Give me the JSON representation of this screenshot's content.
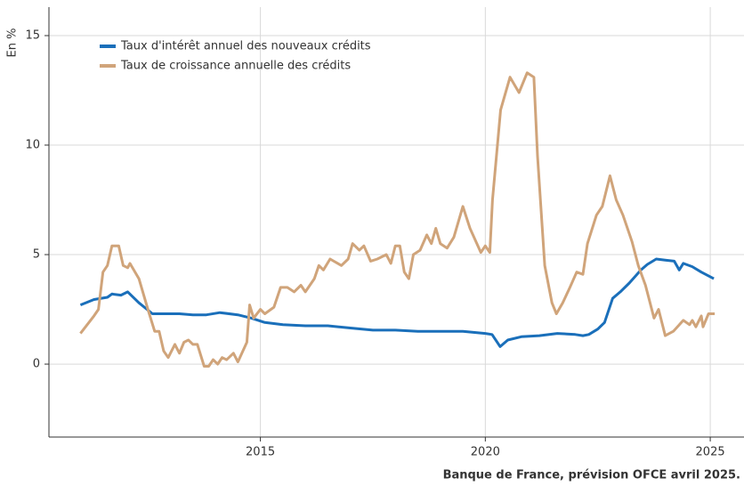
{
  "chart_data": {
    "type": "line",
    "y_label": "En %",
    "source": "Banque de France, prévision OFCE avril 2025.",
    "xlim": [
      2010.3,
      2025.75
    ],
    "ylim": [
      -3.33,
      16.3
    ],
    "xticks": [
      2015,
      2020,
      2025
    ],
    "yticks": [
      0,
      5,
      10,
      15
    ],
    "grid": true,
    "legend": "upper left",
    "series": [
      {
        "name": "Taux d'intérêt annuel des nouveaux crédits",
        "color": "#1a6fba",
        "x": [
          2011.0,
          2011.3,
          2011.6,
          2011.7,
          2011.9,
          2012.05,
          2012.3,
          2012.6,
          2012.9,
          2013.2,
          2013.5,
          2013.8,
          2014.1,
          2014.5,
          2014.8,
          2015.1,
          2015.5,
          2016.0,
          2016.5,
          2017.0,
          2017.5,
          2018.0,
          2018.5,
          2019.0,
          2019.5,
          2020.0,
          2020.15,
          2020.33,
          2020.5,
          2020.8,
          2021.2,
          2021.6,
          2022.0,
          2022.17,
          2022.3,
          2022.5,
          2022.65,
          2022.83,
          2023.0,
          2023.2,
          2023.46,
          2023.6,
          2023.8,
          2024.0,
          2024.2,
          2024.31,
          2024.4,
          2024.6,
          2024.8,
          2025.08
        ],
        "values": [
          2.7,
          2.95,
          3.05,
          3.2,
          3.15,
          3.3,
          2.8,
          2.3,
          2.3,
          2.3,
          2.25,
          2.25,
          2.35,
          2.25,
          2.1,
          1.9,
          1.8,
          1.75,
          1.75,
          1.65,
          1.55,
          1.55,
          1.5,
          1.5,
          1.5,
          1.4,
          1.35,
          0.8,
          1.1,
          1.25,
          1.3,
          1.4,
          1.35,
          1.3,
          1.35,
          1.6,
          1.9,
          3.0,
          3.3,
          3.7,
          4.3,
          4.55,
          4.8,
          4.75,
          4.7,
          4.3,
          4.6,
          4.45,
          4.2,
          3.9
        ]
      },
      {
        "name": "Taux de croissance annuelle des crédits",
        "color": "#d0a47a",
        "x": [
          2011.0,
          2011.3,
          2011.4,
          2011.5,
          2011.6,
          2011.7,
          2011.85,
          2011.95,
          2012.05,
          2012.1,
          2012.3,
          2012.5,
          2012.65,
          2012.75,
          2012.85,
          2012.95,
          2013.1,
          2013.2,
          2013.3,
          2013.4,
          2013.5,
          2013.6,
          2013.75,
          2013.85,
          2013.95,
          2014.05,
          2014.15,
          2014.25,
          2014.4,
          2014.5,
          2014.7,
          2014.76,
          2014.85,
          2015.0,
          2015.1,
          2015.3,
          2015.45,
          2015.6,
          2015.75,
          2015.9,
          2016.0,
          2016.2,
          2016.3,
          2016.4,
          2016.55,
          2016.8,
          2016.95,
          2017.05,
          2017.2,
          2017.3,
          2017.45,
          2017.6,
          2017.8,
          2017.9,
          2018.0,
          2018.1,
          2018.2,
          2018.3,
          2018.4,
          2018.55,
          2018.7,
          2018.8,
          2018.9,
          2019.0,
          2019.15,
          2019.3,
          2019.5,
          2019.66,
          2019.9,
          2020.0,
          2020.1,
          2020.16,
          2020.34,
          2020.55,
          2020.75,
          2020.93,
          2021.08,
          2021.16,
          2021.32,
          2021.48,
          2021.58,
          2021.72,
          2021.88,
          2022.03,
          2022.17,
          2022.27,
          2022.47,
          2022.6,
          2022.77,
          2022.91,
          2023.06,
          2023.26,
          2023.4,
          2023.56,
          2023.75,
          2023.85,
          2024.0,
          2024.18,
          2024.4,
          2024.54,
          2024.6,
          2024.68,
          2024.8,
          2024.84,
          2024.96,
          2025.1
        ],
        "values": [
          1.4,
          2.2,
          2.5,
          4.2,
          4.5,
          5.4,
          5.4,
          4.5,
          4.4,
          4.6,
          3.9,
          2.5,
          1.5,
          1.5,
          0.6,
          0.3,
          0.9,
          0.5,
          1.0,
          1.1,
          0.9,
          0.9,
          -0.1,
          -0.1,
          0.2,
          0.0,
          0.3,
          0.2,
          0.5,
          0.1,
          1.0,
          2.7,
          2.1,
          2.5,
          2.3,
          2.6,
          3.5,
          3.5,
          3.3,
          3.6,
          3.3,
          3.9,
          4.5,
          4.3,
          4.8,
          4.5,
          4.8,
          5.5,
          5.2,
          5.4,
          4.7,
          4.8,
          5.0,
          4.6,
          5.4,
          5.4,
          4.2,
          3.9,
          5.0,
          5.2,
          5.9,
          5.5,
          6.2,
          5.5,
          5.3,
          5.8,
          7.2,
          6.2,
          5.1,
          5.4,
          5.1,
          7.5,
          11.6,
          13.1,
          12.4,
          13.3,
          13.1,
          9.5,
          4.5,
          2.8,
          2.3,
          2.8,
          3.5,
          4.2,
          4.1,
          5.5,
          6.8,
          7.2,
          8.6,
          7.5,
          6.8,
          5.6,
          4.5,
          3.6,
          2.1,
          2.5,
          1.3,
          1.5,
          2.0,
          1.8,
          2.0,
          1.7,
          2.2,
          1.7,
          2.3,
          2.3
        ]
      }
    ]
  }
}
